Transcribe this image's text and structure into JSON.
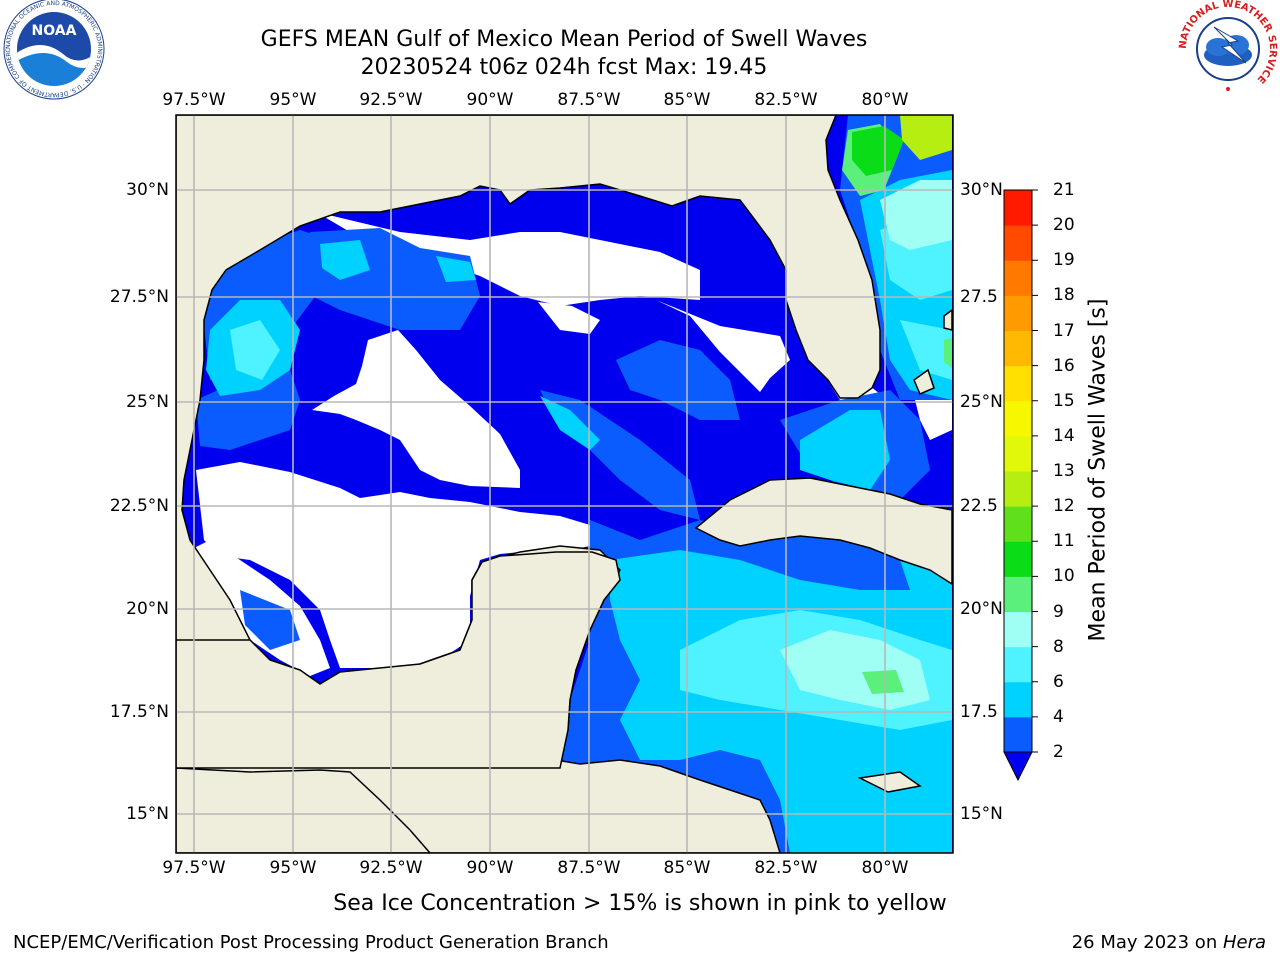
{
  "title_line1": "GEFS MEAN Gulf of Mexico Mean Period of Swell Waves",
  "title_line2": "20230524 t06z 024h fcst   Max: 19.45",
  "lon_ticks": [
    "97.5°W",
    "95°W",
    "92.5°W",
    "90°W",
    "87.5°W",
    "85°W",
    "82.5°W",
    "80°W"
  ],
  "lat_ticks_left": [
    "30°N",
    "27.5°N",
    "25°N",
    "22.5°N",
    "20°N",
    "17.5°N",
    "15°N"
  ],
  "lat_ticks_right": [
    "30°N",
    "27.5",
    "25°N",
    "22.5",
    "20°N",
    "17.5",
    "15°N"
  ],
  "colorbar": {
    "title": "Mean Period of Swell Waves [s]",
    "ticks": [
      "2",
      "4",
      "6",
      "8",
      "9",
      "10",
      "11",
      "12",
      "13",
      "14",
      "15",
      "16",
      "17",
      "18",
      "19",
      "20",
      "21"
    ],
    "colors": [
      "#0b5cff",
      "#00d2ff",
      "#4ff2ff",
      "#9ffff5",
      "#5bf07c",
      "#0adc18",
      "#5fe01a",
      "#b5ee10",
      "#e2f80a",
      "#f7f700",
      "#ffe000",
      "#ffba00",
      "#ff9a00",
      "#ff7800",
      "#ff4b00",
      "#ff1a00"
    ],
    "under_color": "#0000ee"
  },
  "fields": {
    "ocean_base": "#0000ee",
    "land": "#efeddc"
  },
  "note": "Sea Ice Concentration > 15% is shown in pink to yellow",
  "footer_left": "NCEP/EMC/Verification Post Processing Product Generation Branch",
  "footer_date": "26 May 2023 on ",
  "footer_machine": "Hera",
  "logos": {
    "noaa": "NOAA",
    "noaa_ring": "NATIONAL OCEANIC AND ATMOSPHERIC ADMINISTRATION · U.S. DEPARTMENT OF COMMERCE",
    "nws_ring": "NATIONAL WEATHER SERVICE"
  }
}
